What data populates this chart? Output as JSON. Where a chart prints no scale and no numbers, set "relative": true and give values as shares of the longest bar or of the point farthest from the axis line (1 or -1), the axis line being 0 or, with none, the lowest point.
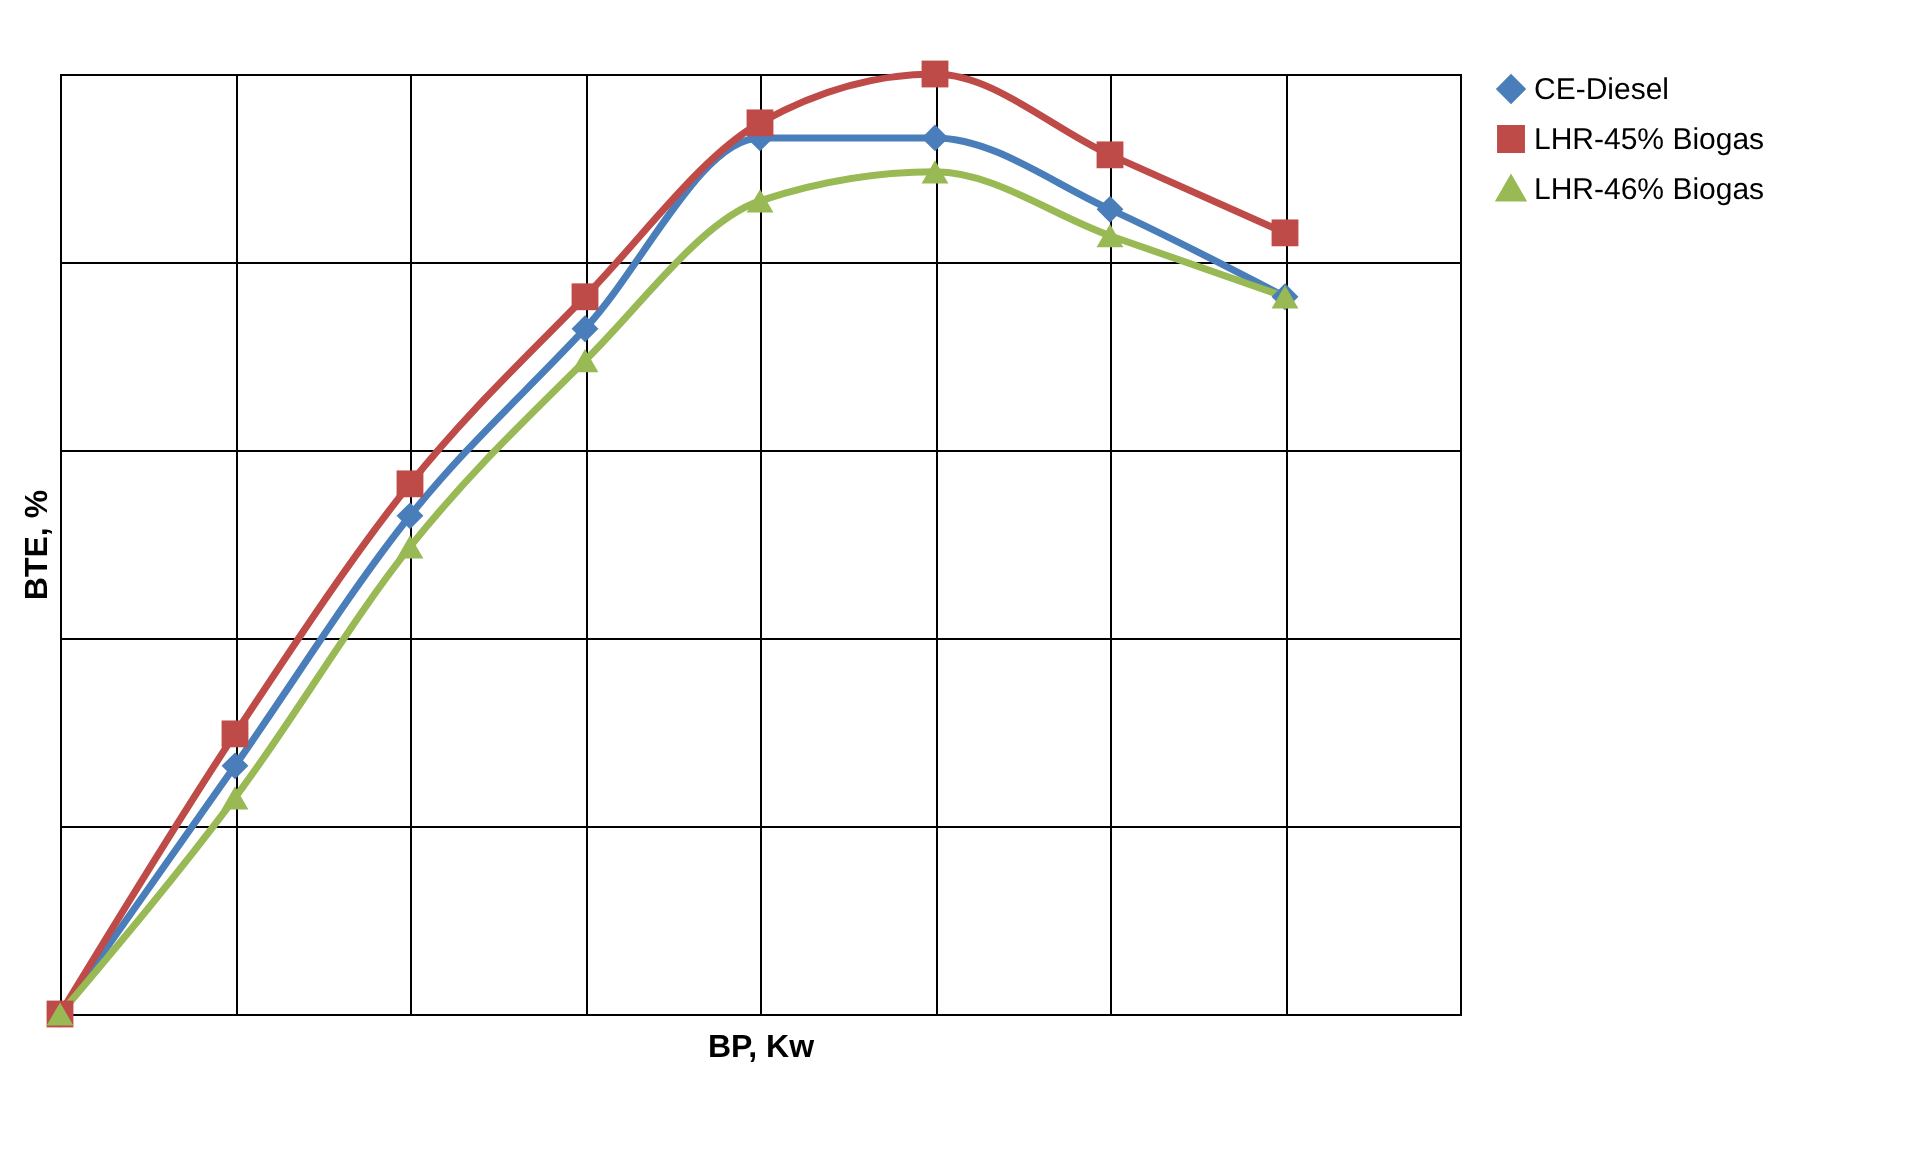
{
  "chart_data": {
    "type": "line",
    "xlabel": "BP, Kw",
    "ylabel": "BTE, %",
    "relative": true,
    "grid": true,
    "legend": "right",
    "categories": [
      null,
      null,
      null,
      null,
      null,
      null,
      null,
      null
    ],
    "series": [
      {
        "name": "CE-Diesel",
        "color": "#4a7ebb",
        "marker": "diamond",
        "values": [
          0,
          0.264,
          0.53,
          0.729,
          0.932,
          0.932,
          0.856,
          0.763
        ]
      },
      {
        "name": "LHR-45% Biogas",
        "color": "#be4b48",
        "marker": "square",
        "values": [
          0,
          0.298,
          0.564,
          0.763,
          0.948,
          1,
          0.914,
          0.831
        ]
      },
      {
        "name": "LHR-46% Biogas",
        "color": "#98b954",
        "marker": "triangle",
        "values": [
          0,
          0.23,
          0.497,
          0.695,
          0.865,
          0.896,
          0.828,
          0.763
        ]
      }
    ]
  }
}
